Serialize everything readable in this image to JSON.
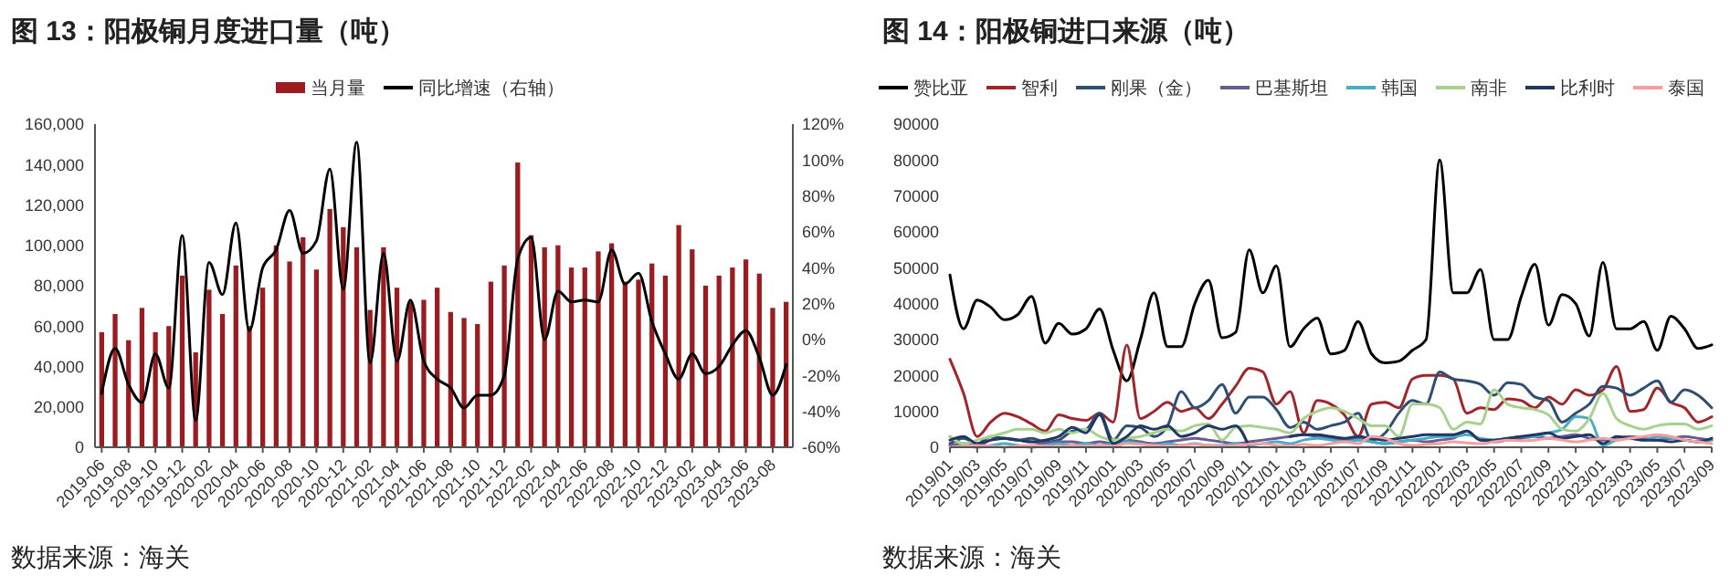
{
  "chart_data": [
    {
      "type": "bar",
      "title": "图 13：阳极铜月度进口量（吨）",
      "annotations": [
        "数据来源：海关"
      ],
      "legend": "top",
      "categories": [
        "2019-06",
        null,
        "2019-08",
        null,
        "2019-10",
        null,
        "2019-12",
        null,
        "2020-02",
        null,
        "2020-04",
        null,
        "2020-06",
        null,
        "2020-08",
        null,
        "2020-10",
        null,
        "2020-12",
        null,
        "2021-02",
        null,
        "2021-04",
        null,
        "2021-06",
        null,
        "2021-08",
        null,
        "2021-10",
        null,
        "2021-12",
        null,
        "2022-02",
        null,
        "2022-04",
        null,
        "2022-06",
        null,
        "2022-08",
        null,
        "2022-10",
        null,
        "2022-12",
        null,
        "2023-02",
        null,
        "2023-04",
        null,
        "2023-06",
        null,
        "2023-08",
        null
      ],
      "ylim": [
        0,
        160000
      ],
      "yticks": [
        0,
        {
          "value": 20000,
          "label": "20,000"
        },
        {
          "value": 40000,
          "label": "40,000"
        },
        {
          "value": 60000,
          "label": "60,000"
        },
        {
          "value": 80000,
          "label": "80,000"
        },
        {
          "value": 100000,
          "label": "100,000"
        },
        {
          "value": 120000,
          "label": "120,000"
        },
        {
          "value": 140000,
          "label": "140,000"
        },
        {
          "value": 160000,
          "label": "160,000"
        }
      ],
      "y2lim": [
        -60,
        120
      ],
      "y2ticks": [
        {
          "value": -60,
          "label": "-60%"
        },
        {
          "value": -40,
          "label": "-40%"
        },
        {
          "value": -20,
          "label": "-20%"
        },
        {
          "value": 0,
          "label": "0%"
        },
        {
          "value": 20,
          "label": "20%"
        },
        {
          "value": 40,
          "label": "40%"
        },
        {
          "value": 60,
          "label": "60%"
        },
        {
          "value": 80,
          "label": "80%"
        },
        {
          "value": 100,
          "label": "100%"
        },
        {
          "value": 120,
          "label": "120%"
        }
      ],
      "series": [
        {
          "name": "当月量",
          "type": "bar",
          "color": "#9b1c20",
          "values": [
            57000,
            66000,
            53000,
            69000,
            57000,
            60000,
            85000,
            47000,
            78000,
            66000,
            90000,
            60000,
            79000,
            100000,
            92000,
            104000,
            88000,
            118000,
            109000,
            99000,
            68000,
            99000,
            79000,
            72000,
            73000,
            79000,
            67000,
            64000,
            61000,
            82000,
            90000,
            141000,
            105000,
            99000,
            100000,
            89000,
            89000,
            97000,
            101000,
            82000,
            83000,
            91000,
            85000,
            110000,
            98000,
            80000,
            85000,
            89000,
            93000,
            86000,
            69000,
            72000
          ]
        },
        {
          "name": "同比增速（右轴）",
          "type": "line",
          "axis": "y2",
          "color": "#000000",
          "values": [
            -30,
            -5,
            -25,
            -35,
            -8,
            -27,
            58,
            -45,
            43,
            25,
            65,
            5,
            40,
            50,
            72,
            48,
            55,
            95,
            28,
            110,
            -13,
            48,
            -12,
            22,
            -12,
            -22,
            -27,
            -38,
            -31,
            -31,
            -20,
            45,
            57,
            0,
            27,
            21,
            22,
            21,
            50,
            31,
            37,
            10,
            -8,
            -22,
            -8,
            -19,
            -15,
            -3,
            5,
            -10,
            -31,
            -14
          ]
        }
      ]
    },
    {
      "type": "line",
      "title": "图 14：阳极铜进口来源（吨）",
      "annotations": [
        "数据来源：海关"
      ],
      "legend": "top",
      "categories": [
        "2019/01",
        null,
        "2019/03",
        null,
        "2019/05",
        null,
        "2019/07",
        null,
        "2019/09",
        null,
        "2019/11",
        null,
        "2020/01",
        null,
        "2020/03",
        null,
        "2020/05",
        null,
        "2020/07",
        null,
        "2020/09",
        null,
        "2020/11",
        null,
        "2021/01",
        null,
        "2021/03",
        null,
        "2021/05",
        null,
        "2021/07",
        null,
        "2021/09",
        null,
        "2021/11",
        null,
        "2022/01",
        null,
        "2022/03",
        null,
        "2022/05",
        null,
        "2022/07",
        null,
        "2022/09",
        null,
        "2022/11",
        null,
        "2023/01",
        null,
        "2023/03",
        null,
        "2023/05",
        null,
        "2023/07",
        null,
        "2023/09"
      ],
      "ylim": [
        0,
        90000
      ],
      "yticks": [
        0,
        10000,
        20000,
        30000,
        40000,
        50000,
        60000,
        70000,
        80000,
        90000
      ],
      "series": [
        {
          "name": "赞比亚",
          "color": "#000000",
          "values": [
            48000,
            33000,
            41000,
            39000,
            35500,
            37000,
            42000,
            29000,
            34500,
            31500,
            33000,
            38500,
            27000,
            18500,
            30000,
            43000,
            28000,
            28000,
            40000,
            46500,
            30500,
            32000,
            55000,
            43000,
            50500,
            28000,
            33000,
            36000,
            26000,
            27000,
            35000,
            26000,
            23500,
            24000,
            27000,
            30000,
            80000,
            43000,
            43000,
            49500,
            30000,
            30000,
            42000,
            51000,
            34000,
            42500,
            40000,
            31000,
            51500,
            33000,
            33000,
            35000,
            27000,
            36500,
            33000,
            27500,
            28500
          ]
        },
        {
          "name": "智利",
          "color": "#a0262b",
          "values": [
            24500,
            15000,
            3000,
            7000,
            9500,
            8500,
            6500,
            4500,
            9000,
            8000,
            7500,
            9500,
            7000,
            28500,
            8000,
            10000,
            12500,
            10000,
            11000,
            8000,
            12000,
            17000,
            22000,
            21000,
            12000,
            15500,
            4000,
            13000,
            12000,
            9000,
            3000,
            12000,
            12500,
            11000,
            19000,
            20000,
            20000,
            19000,
            9500,
            11000,
            10500,
            13500,
            13000,
            11000,
            14000,
            12000,
            16000,
            14500,
            16000,
            22500,
            10000,
            10500,
            16500,
            12500,
            11000,
            7000,
            8500
          ]
        },
        {
          "name": "刚果（金）",
          "color": "#2e4f73",
          "values": [
            1000,
            2500,
            1000,
            3000,
            2500,
            2000,
            2500,
            1500,
            2000,
            4500,
            5000,
            9500,
            2000,
            6000,
            5500,
            3000,
            6000,
            15500,
            11000,
            13000,
            17500,
            9500,
            14000,
            14000,
            10500,
            5500,
            7000,
            5000,
            6000,
            7000,
            9500,
            2000,
            4000,
            9500,
            13000,
            12000,
            21000,
            19000,
            18500,
            17500,
            14500,
            18000,
            17500,
            14000,
            13000,
            7000,
            9500,
            12000,
            17000,
            16500,
            14500,
            16500,
            18500,
            12500,
            16000,
            14500,
            11000
          ]
        },
        {
          "name": "巴基斯坦",
          "color": "#6b5b95",
          "values": [
            500,
            1000,
            300,
            2000,
            2500,
            2000,
            1500,
            1000,
            1500,
            1500,
            1000,
            1500,
            1000,
            2000,
            1500,
            1000,
            1500,
            2000,
            2500,
            2000,
            1500,
            1000,
            1500,
            2000,
            2500,
            3000,
            3500,
            3000,
            2500,
            2000,
            2500,
            1500,
            1000,
            1500,
            2000,
            1500,
            2000,
            2500,
            4500,
            2000,
            1500,
            2000,
            2500,
            3000,
            2500,
            3000,
            3500,
            2500,
            2000,
            2500,
            3000,
            2500,
            2000,
            2500,
            3000,
            2500,
            2000
          ]
        },
        {
          "name": "韩国",
          "color": "#4bacc6",
          "values": [
            3000,
            500,
            0,
            500,
            1000,
            500,
            0,
            500,
            1000,
            500,
            1000,
            500,
            1000,
            1500,
            1000,
            500,
            1000,
            500,
            1000,
            500,
            500,
            1000,
            500,
            1000,
            1500,
            1000,
            2000,
            2500,
            2000,
            1500,
            2000,
            1500,
            1000,
            1500,
            2000,
            2500,
            3000,
            3000,
            3500,
            2500,
            2000,
            2500,
            3000,
            3000,
            4000,
            5000,
            8500,
            8000,
            500,
            2000,
            2500,
            2000,
            3000,
            2500,
            2000,
            1500,
            2000
          ]
        },
        {
          "name": "南非",
          "color": "#a9d18e",
          "values": [
            3000,
            1000,
            2000,
            3000,
            4000,
            5000,
            5000,
            4000,
            5000,
            4000,
            5000,
            3000,
            2000,
            2500,
            3000,
            4000,
            5000,
            4500,
            6000,
            6500,
            2000,
            5500,
            6000,
            5500,
            5000,
            4000,
            8000,
            10000,
            11000,
            10000,
            8000,
            6000,
            6000,
            3000,
            12000,
            12000,
            11000,
            5000,
            7000,
            6500,
            16000,
            12000,
            11000,
            10500,
            9000,
            5000,
            4500,
            8000,
            15000,
            8000,
            6000,
            5000,
            6000,
            6500,
            6500,
            5000,
            6000
          ]
        },
        {
          "name": "比利时",
          "color": "#1f3864",
          "values": [
            2000,
            3000,
            1000,
            2000,
            2500,
            2000,
            1500,
            2000,
            3000,
            5500,
            4000,
            9000,
            1000,
            3000,
            6000,
            5000,
            6000,
            3000,
            4000,
            6000,
            5000,
            6000,
            0,
            null,
            null,
            3000,
            3500,
            3500,
            3000,
            2500,
            3000,
            2500,
            2000,
            2500,
            3000,
            3500,
            3500,
            3500,
            4500,
            2000,
            2000,
            2500,
            3000,
            3500,
            4000,
            2500,
            3000,
            3500,
            1000,
            3000,
            2500,
            2000,
            2000,
            1500,
            2000,
            1500,
            2500
          ]
        },
        {
          "name": "泰国",
          "color": "#f4a0a0",
          "values": [
            0,
            300,
            500,
            300,
            0,
            300,
            500,
            300,
            200,
            500,
            300,
            500,
            300,
            1000,
            800,
            500,
            300,
            500,
            800,
            500,
            300,
            500,
            800,
            1000,
            500,
            300,
            800,
            500,
            1000,
            1500,
            1000,
            3000,
            2500,
            1000,
            500,
            800,
            1000,
            1500,
            1200,
            1000,
            1500,
            2000,
            1800,
            2000,
            2500,
            2000,
            1500,
            2000,
            2500,
            2000,
            2500,
            3000,
            3500,
            3000,
            2000,
            1500,
            1000
          ]
        }
      ]
    }
  ]
}
